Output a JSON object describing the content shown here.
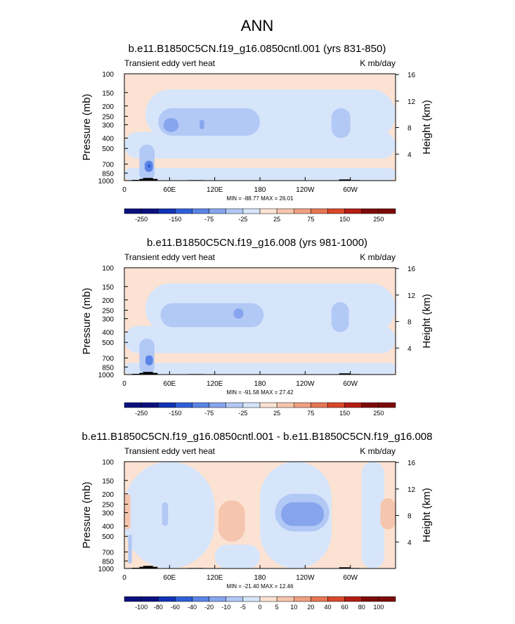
{
  "figure": {
    "title": "ANN"
  },
  "colors": {
    "plot_bg": "#fbe2d2",
    "blue_levels": [
      "#0c0f7e",
      "#1133b5",
      "#2f5fd9",
      "#5a84e6",
      "#86a5ee",
      "#b2c8f5",
      "#d6e5fa"
    ],
    "red_levels": [
      "#fbe2d2",
      "#f5c5ad",
      "#efa080",
      "#e77653",
      "#d9472a",
      "#b41c12",
      "#7e0a0a"
    ],
    "mask": "#000000"
  },
  "chart_data": [
    {
      "type": "heatmap",
      "title": "b.e11.B1850C5CN.f19_g16.0850cntl.001 (yrs 831-850)",
      "left_label": "Transient eddy vert heat",
      "right_label": "K mb/day",
      "ylabel": "Pressure (mb)",
      "y2label": "Height (km)",
      "x_ticks": [
        "0",
        "60E",
        "120E",
        "180",
        "120W",
        "60W"
      ],
      "x_tick_lon": [
        0,
        60,
        120,
        180,
        240,
        300
      ],
      "xlim_lon": [
        0,
        360
      ],
      "y_ticks": [
        "100",
        "150",
        "200",
        "250",
        "300",
        "400",
        "500",
        "700",
        "850",
        "1000"
      ],
      "y_tick_values": [
        100,
        150,
        200,
        250,
        300,
        400,
        500,
        700,
        850,
        1000
      ],
      "ylim": [
        100,
        1000
      ],
      "y_scale": "log",
      "y2_ticks": [
        "16",
        "12",
        "8",
        "4"
      ],
      "y2_tick_km": [
        16,
        12,
        8,
        4
      ],
      "stats": "MIN = -88.77  MAX = 26.01",
      "min": -88.77,
      "max": 26.01,
      "colorbar_labels": [
        "-250",
        "-150",
        "-75",
        "-25",
        "25",
        "75",
        "150",
        "250"
      ],
      "features": [
        {
          "lon": [
            0,
            360
          ],
          "p": [
            760,
            1000
          ],
          "level": -1
        },
        {
          "lon": [
            0,
            360
          ],
          "p": [
            350,
            620
          ],
          "level": -1
        },
        {
          "lon": [
            28,
            360
          ],
          "p": [
            140,
            410
          ],
          "level": -1
        },
        {
          "lon": [
            45,
            180
          ],
          "p": [
            210,
            380
          ],
          "level": -2
        },
        {
          "lon": [
            275,
            300
          ],
          "p": [
            210,
            400
          ],
          "level": -2
        },
        {
          "lon": [
            52,
            72
          ],
          "p": [
            260,
            350
          ],
          "level": -3
        },
        {
          "lon": [
            100,
            106
          ],
          "p": [
            270,
            330
          ],
          "level": -3
        },
        {
          "lon": [
            20,
            40
          ],
          "p": [
            460,
            1000
          ],
          "level": -2
        },
        {
          "lon": [
            27,
            38
          ],
          "p": [
            650,
            830
          ],
          "level": -4
        },
        {
          "lon": [
            31,
            35
          ],
          "p": [
            700,
            760
          ],
          "level": -5
        }
      ]
    },
    {
      "type": "heatmap",
      "title": "b.e11.B1850C5CN.f19_g16.008 (yrs 981-1000)",
      "left_label": "Transient eddy vert heat",
      "right_label": "K mb/day",
      "ylabel": "Pressure (mb)",
      "y2label": "Height (km)",
      "x_ticks": [
        "0",
        "60E",
        "120E",
        "180",
        "120W",
        "60W"
      ],
      "x_tick_lon": [
        0,
        60,
        120,
        180,
        240,
        300
      ],
      "xlim_lon": [
        0,
        360
      ],
      "y_ticks": [
        "100",
        "150",
        "200",
        "250",
        "300",
        "400",
        "500",
        "700",
        "850",
        "1000"
      ],
      "y_tick_values": [
        100,
        150,
        200,
        250,
        300,
        400,
        500,
        700,
        850,
        1000
      ],
      "ylim": [
        100,
        1000
      ],
      "y_scale": "log",
      "y2_ticks": [
        "16",
        "12",
        "8",
        "4"
      ],
      "y2_tick_km": [
        16,
        12,
        8,
        4
      ],
      "stats": "MIN = -91.58  MAX = 27.42",
      "min": -91.58,
      "max": 27.42,
      "colorbar_labels": [
        "-250",
        "-150",
        "-75",
        "-25",
        "25",
        "75",
        "150",
        "250"
      ],
      "features": [
        {
          "lon": [
            0,
            360
          ],
          "p": [
            780,
            1000
          ],
          "level": -1
        },
        {
          "lon": [
            0,
            360
          ],
          "p": [
            350,
            630
          ],
          "level": -1
        },
        {
          "lon": [
            28,
            360
          ],
          "p": [
            140,
            410
          ],
          "level": -1
        },
        {
          "lon": [
            48,
            185
          ],
          "p": [
            215,
            360
          ],
          "level": -2
        },
        {
          "lon": [
            275,
            298
          ],
          "p": [
            210,
            400
          ],
          "level": -2
        },
        {
          "lon": [
            145,
            158
          ],
          "p": [
            240,
            300
          ],
          "level": -3
        },
        {
          "lon": [
            20,
            40
          ],
          "p": [
            460,
            1000
          ],
          "level": -2
        },
        {
          "lon": [
            28,
            38
          ],
          "p": [
            660,
            820
          ],
          "level": -4
        }
      ]
    },
    {
      "type": "heatmap",
      "title": "b.e11.B1850C5CN.f19_g16.0850cntl.001 - b.e11.B1850C5CN.f19_g16.008",
      "left_label": "Transient eddy vert heat",
      "right_label": "K mb/day",
      "ylabel": "Pressure (mb)",
      "y2label": "Height (km)",
      "x_ticks": [
        "0",
        "60E",
        "120E",
        "180",
        "120W",
        "60W"
      ],
      "x_tick_lon": [
        0,
        60,
        120,
        180,
        240,
        300
      ],
      "xlim_lon": [
        0,
        360
      ],
      "y_ticks": [
        "100",
        "150",
        "200",
        "250",
        "300",
        "400",
        "500",
        "700",
        "850",
        "1000"
      ],
      "y_tick_values": [
        100,
        150,
        200,
        250,
        300,
        400,
        500,
        700,
        850,
        1000
      ],
      "ylim": [
        100,
        1000
      ],
      "y_scale": "log",
      "y2_ticks": [
        "16",
        "12",
        "8",
        "4"
      ],
      "y2_tick_km": [
        16,
        12,
        8,
        4
      ],
      "stats": "MIN = -21.40  MAX = 12.46",
      "min": -21.4,
      "max": 12.46,
      "colorbar_labels": [
        "-100",
        "-80",
        "-60",
        "-40",
        "-20",
        "-10",
        "-5",
        "0",
        "5",
        "10",
        "20",
        "40",
        "60",
        "80",
        "100"
      ],
      "features": [
        {
          "lon": [
            0,
            120
          ],
          "p": [
            100,
            1000
          ],
          "level": -1
        },
        {
          "lon": [
            180,
            275
          ],
          "p": [
            100,
            1000
          ],
          "level": -1
        },
        {
          "lon": [
            315,
            345
          ],
          "p": [
            100,
            1000
          ],
          "level": -1
        },
        {
          "lon": [
            120,
            180
          ],
          "p": [
            600,
            1000
          ],
          "level": -1
        },
        {
          "lon": [
            125,
            160
          ],
          "p": [
            230,
            560
          ],
          "level": 1
        },
        {
          "lon": [
            0,
            8
          ],
          "p": [
            200,
            430
          ],
          "level": 1
        },
        {
          "lon": [
            340,
            360
          ],
          "p": [
            220,
            430
          ],
          "level": 1
        },
        {
          "lon": [
            200,
            272
          ],
          "p": [
            200,
            450
          ],
          "level": -2
        },
        {
          "lon": [
            208,
            265
          ],
          "p": [
            240,
            400
          ],
          "level": -3
        },
        {
          "lon": [
            50,
            58
          ],
          "p": [
            240,
            400
          ],
          "level": -2
        },
        {
          "lon": [
            5,
            10
          ],
          "p": [
            480,
            900
          ],
          "level": -2
        }
      ]
    }
  ]
}
